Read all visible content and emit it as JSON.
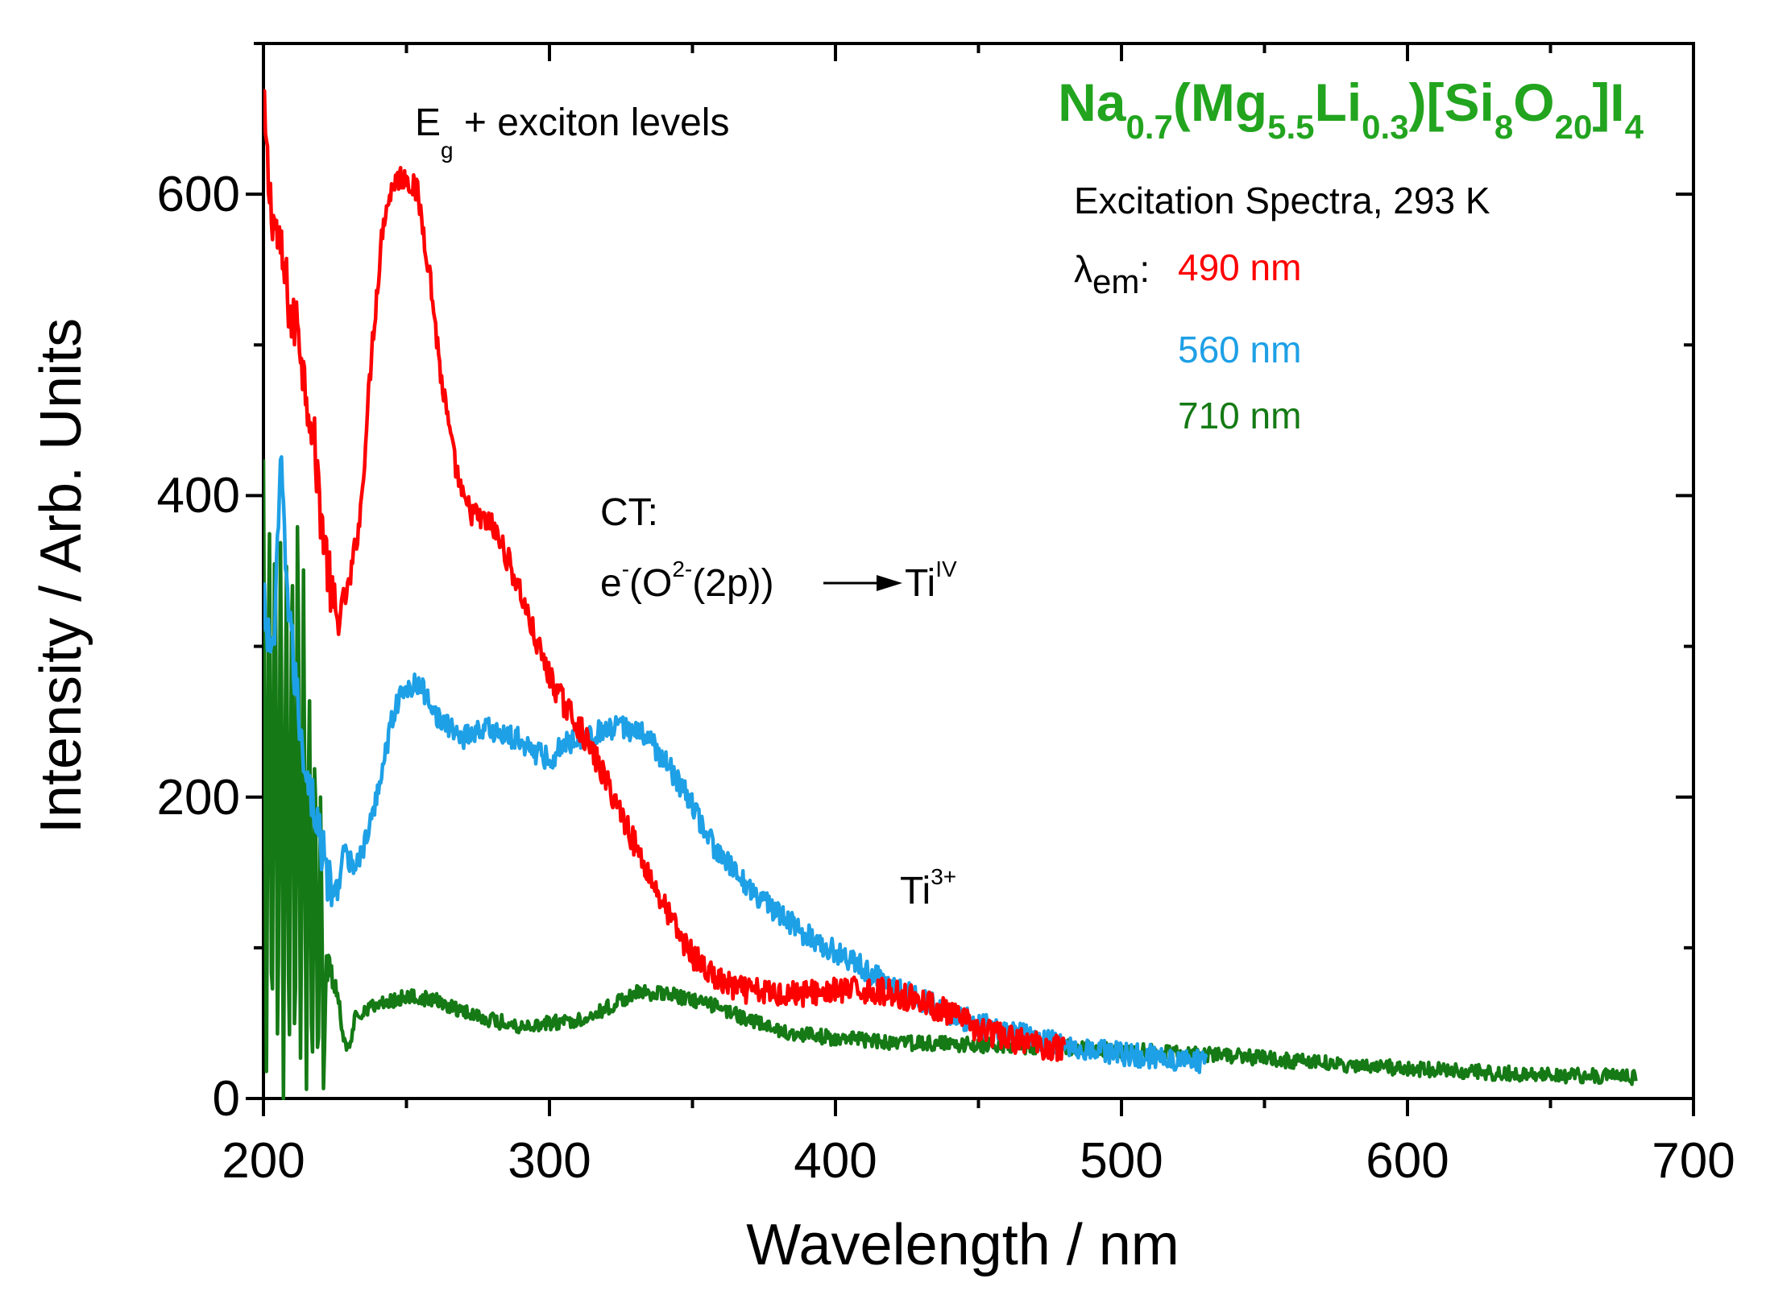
{
  "colors": {
    "red": "#ff0000",
    "blue": "#1ea0e6",
    "green": "#157a15",
    "formula": "#22a41f",
    "axis": "#000000"
  },
  "chart_data": {
    "type": "line",
    "xlabel": "Wavelength / nm",
    "ylabel": "Intensity / Arb. Units",
    "xlim": [
      200,
      700
    ],
    "ylim": [
      0,
      700
    ],
    "x_ticks": [
      "200",
      "300",
      "400",
      "500",
      "600",
      "700"
    ],
    "y_ticks": [
      "0",
      "200",
      "400",
      "600"
    ],
    "title_formula": {
      "parts": [
        {
          "t": "Na",
          "sub": false
        },
        {
          "t": "0.7",
          "sub": true
        },
        {
          "t": "(Mg",
          "sub": false
        },
        {
          "t": "5.5",
          "sub": true
        },
        {
          "t": "Li",
          "sub": false
        },
        {
          "t": "0.3",
          "sub": true
        },
        {
          "t": ")[Si",
          "sub": false
        },
        {
          "t": "8",
          "sub": true
        },
        {
          "t": "O",
          "sub": false
        },
        {
          "t": "20",
          "sub": true
        },
        {
          "t": "]I",
          "sub": false
        },
        {
          "t": "4",
          "sub": true
        }
      ]
    },
    "subtitle": "Excitation Spectra, 293 K",
    "legend_label": {
      "lambda": "λ",
      "sub": "em",
      "colon": ":"
    },
    "annotations": {
      "eg": {
        "base": "E",
        "sub": "g",
        "rest": " + exciton levels"
      },
      "ct_title": "CT:",
      "ct_line": {
        "e": "e",
        "e_sup": "-",
        "o": "(O",
        "o_sup": "2-",
        "rest": "(2p))",
        "ti": "Ti",
        "ti_sup": "IV"
      },
      "ti3": {
        "base": "Ti",
        "sup": "3+"
      }
    },
    "series": [
      {
        "name": "490 nm",
        "color": "#ff0000",
        "noise": 9,
        "x": [
          200,
          202,
          204,
          206,
          208,
          210,
          212,
          214,
          216,
          218,
          220,
          222,
          224,
          226,
          228,
          230,
          234,
          238,
          242,
          246,
          250,
          254,
          258,
          262,
          266,
          270,
          275,
          280,
          285,
          290,
          295,
          300,
          305,
          310,
          315,
          320,
          325,
          330,
          335,
          340,
          345,
          350,
          355,
          360,
          365,
          370,
          380,
          390,
          400,
          410,
          420,
          430,
          440,
          450,
          460,
          470,
          480
        ],
        "y": [
          660,
          600,
          580,
          560,
          540,
          510,
          520,
          480,
          460,
          430,
          390,
          360,
          330,
          315,
          330,
          340,
          390,
          500,
          585,
          610,
          612,
          600,
          550,
          480,
          430,
          395,
          385,
          380,
          360,
          335,
          305,
          280,
          262,
          248,
          230,
          210,
          190,
          168,
          148,
          128,
          110,
          95,
          85,
          77,
          73,
          71,
          70,
          70,
          71,
          72,
          70,
          65,
          56,
          46,
          40,
          36,
          33
        ]
      },
      {
        "name": "560 nm",
        "color": "#1ea0e6",
        "noise": 8,
        "x": [
          200,
          202,
          204,
          206,
          208,
          210,
          212,
          214,
          216,
          218,
          220,
          222,
          224,
          226,
          228,
          230,
          234,
          238,
          242,
          246,
          250,
          254,
          258,
          262,
          266,
          270,
          275,
          280,
          285,
          290,
          295,
          300,
          305,
          310,
          315,
          320,
          325,
          330,
          335,
          340,
          345,
          350,
          355,
          360,
          370,
          380,
          390,
          400,
          410,
          420,
          430,
          440,
          450,
          460,
          470,
          480,
          490,
          500,
          510,
          520,
          530
        ],
        "y": [
          330,
          300,
          310,
          420,
          350,
          300,
          260,
          230,
          210,
          190,
          170,
          150,
          135,
          140,
          165,
          155,
          160,
          185,
          225,
          260,
          272,
          275,
          265,
          250,
          245,
          240,
          245,
          245,
          240,
          238,
          230,
          225,
          235,
          240,
          242,
          244,
          246,
          245,
          238,
          225,
          210,
          195,
          175,
          160,
          140,
          122,
          108,
          98,
          86,
          75,
          65,
          57,
          49,
          44,
          40,
          36,
          33,
          30,
          28,
          26,
          24
        ]
      },
      {
        "name": "710 nm",
        "color": "#157a15",
        "noise": 5,
        "x": [
          200,
          201,
          202,
          203,
          204,
          205,
          206,
          207,
          208,
          209,
          210,
          211,
          212,
          213,
          214,
          215,
          216,
          217,
          218,
          219,
          220,
          221,
          222,
          224,
          226,
          228,
          230,
          232,
          236,
          240,
          250,
          260,
          270,
          280,
          290,
          300,
          310,
          320,
          330,
          340,
          350,
          360,
          370,
          380,
          400,
          420,
          440,
          460,
          480,
          500,
          520,
          540,
          560,
          580,
          600,
          620,
          640,
          660,
          680
        ],
        "y": [
          420,
          0,
          410,
          0,
          430,
          0,
          380,
          0,
          360,
          0,
          400,
          0,
          420,
          0,
          350,
          0,
          300,
          0,
          260,
          0,
          200,
          0,
          90,
          80,
          70,
          40,
          30,
          55,
          60,
          62,
          68,
          65,
          58,
          52,
          48,
          50,
          52,
          60,
          70,
          70,
          65,
          60,
          52,
          45,
          40,
          37,
          36,
          35,
          34,
          32,
          30,
          28,
          25,
          22,
          20,
          18,
          16,
          15,
          14
        ]
      }
    ]
  }
}
